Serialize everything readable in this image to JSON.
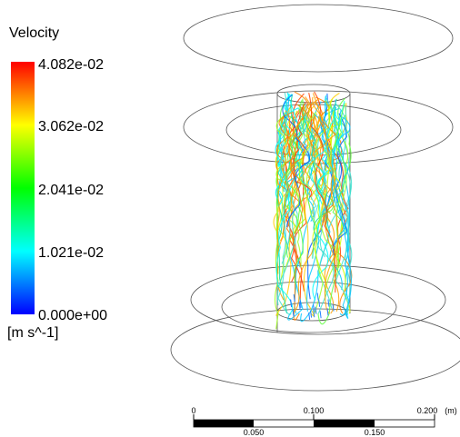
{
  "legend": {
    "title": "Velocity",
    "labels": [
      "4.082e-02",
      "3.062e-02",
      "2.041e-02",
      "1.021e-02",
      "0.000e+00"
    ],
    "unit": "[m s^-1]"
  },
  "scale_bar": {
    "top_labels": [
      "0",
      "0.100",
      "0.200"
    ],
    "unit": "(m)",
    "bottom_labels": [
      "0.050",
      "0.150"
    ]
  }
}
